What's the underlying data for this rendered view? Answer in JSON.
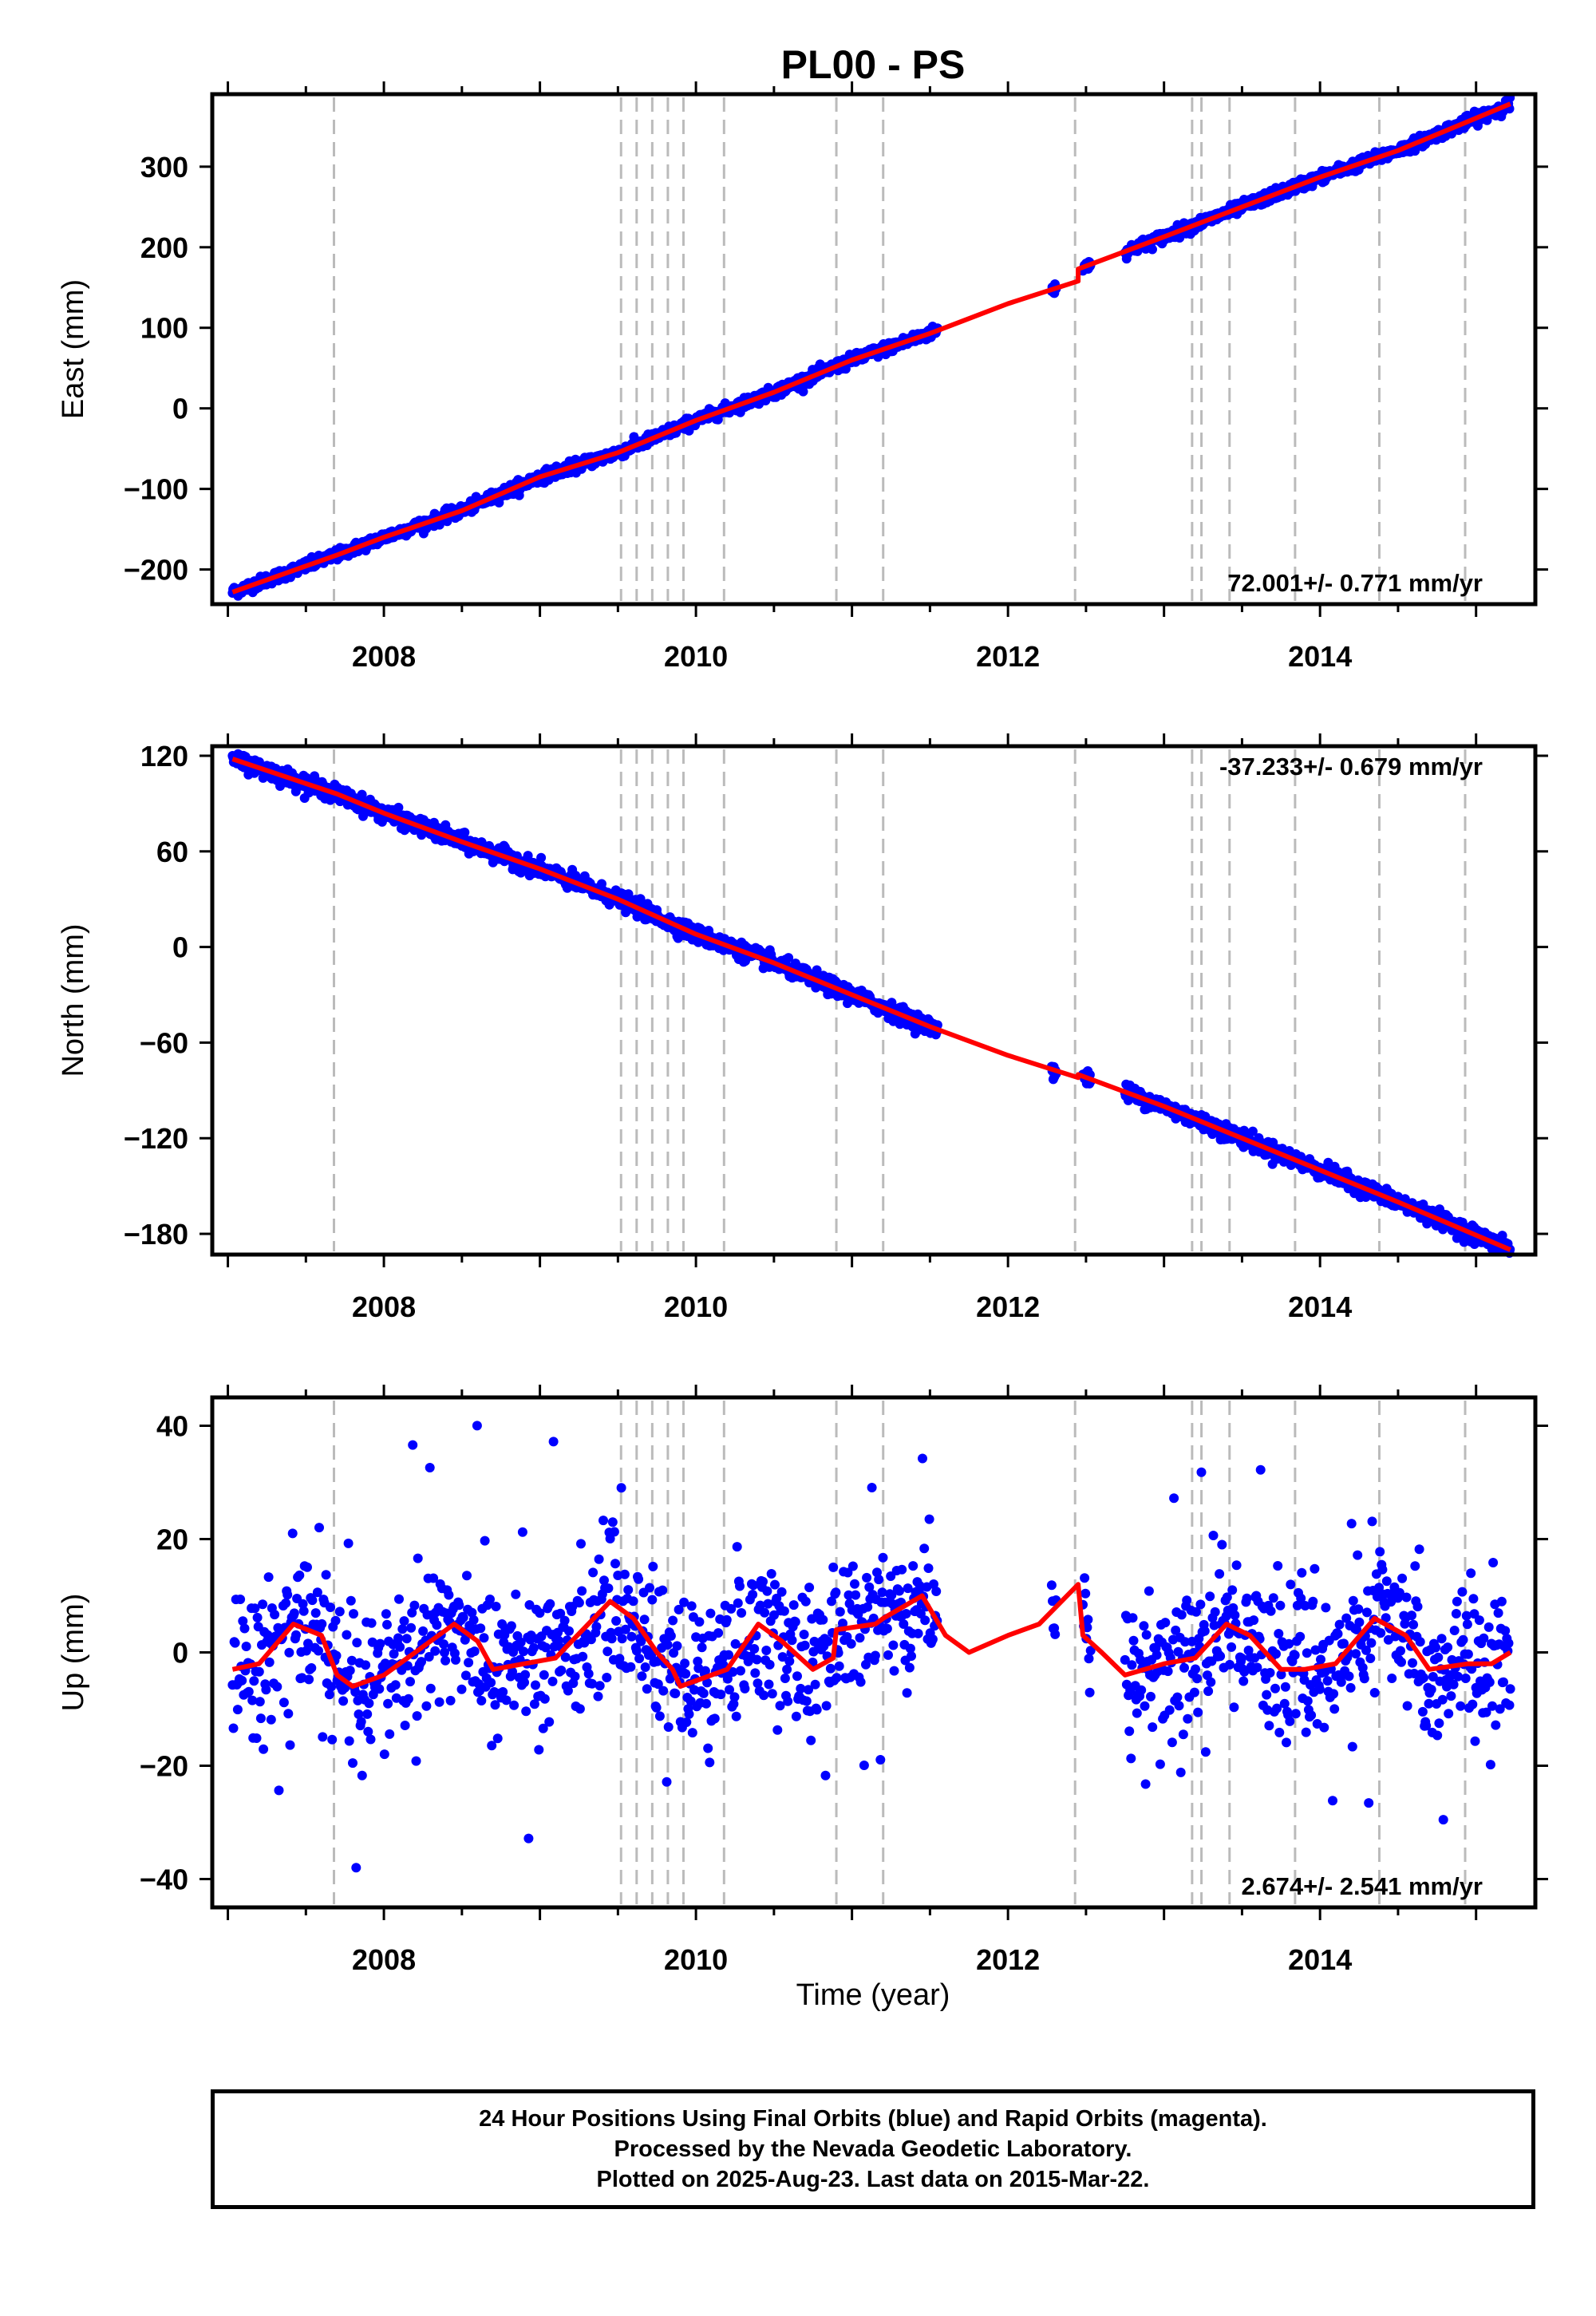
{
  "title": "PL00 - PS",
  "time_axis_label": "Time (year)",
  "footer": {
    "line1": "24 Hour Positions Using Final Orbits (blue) and Rapid Orbits (magenta).",
    "line2": "Processed by the Nevada Geodetic Laboratory.",
    "line3": "Plotted on 2025-Aug-23. Last data on 2015-Mar-22."
  },
  "colors": {
    "points": "#0000ff",
    "fit": "#ff0000",
    "event_lines": "#bbbbbb",
    "axes": "#000000"
  },
  "chart_data": [
    {
      "type": "scatter",
      "component": "East",
      "ylabel": "East (mm)",
      "rate_label": "72.001+/- 0.771 mm/yr",
      "rate_position": "bottom-right",
      "xlim": [
        2006.9,
        2015.38
      ],
      "ylim": [
        -243,
        390
      ],
      "yticks": [
        -200,
        -100,
        0,
        100,
        200,
        300
      ],
      "xticks": [
        2008,
        2010,
        2012,
        2014
      ],
      "data_segments": [
        [
          2007.03,
          2011.55
        ],
        [
          2012.28,
          2012.31
        ],
        [
          2012.48,
          2012.53
        ],
        [
          2012.75,
          2015.22
        ]
      ],
      "fit": {
        "points": [
          [
            2007.03,
            -228
          ],
          [
            2007.7,
            -182
          ],
          [
            2008.0,
            -160
          ],
          [
            2008.5,
            -127
          ],
          [
            2009.0,
            -85
          ],
          [
            2009.5,
            -55
          ],
          [
            2010.0,
            -15
          ],
          [
            2010.5,
            20
          ],
          [
            2011.0,
            60
          ],
          [
            2011.5,
            93
          ],
          [
            2012.0,
            130
          ],
          [
            2012.45,
            158
          ],
          [
            2012.45,
            173
          ],
          [
            2013.0,
            213
          ],
          [
            2013.5,
            250
          ],
          [
            2014.0,
            287
          ],
          [
            2014.5,
            320
          ],
          [
            2015.22,
            378
          ]
        ]
      }
    },
    {
      "type": "scatter",
      "component": "North",
      "ylabel": "North (mm)",
      "rate_label": "-37.233+/- 0.679 mm/yr",
      "rate_position": "top-right",
      "xlim": [
        2006.9,
        2015.38
      ],
      "ylim": [
        -193,
        126
      ],
      "yticks": [
        -180,
        -120,
        -60,
        0,
        60,
        120
      ],
      "xticks": [
        2008,
        2010,
        2012,
        2014
      ],
      "data_segments": [
        [
          2007.03,
          2011.55
        ],
        [
          2012.28,
          2012.31
        ],
        [
          2012.48,
          2012.53
        ],
        [
          2012.75,
          2015.22
        ]
      ],
      "fit": {
        "points": [
          [
            2007.03,
            118
          ],
          [
            2007.7,
            96
          ],
          [
            2008.0,
            84
          ],
          [
            2008.5,
            66
          ],
          [
            2009.0,
            49
          ],
          [
            2009.5,
            30
          ],
          [
            2010.0,
            8
          ],
          [
            2010.5,
            -10
          ],
          [
            2011.0,
            -30
          ],
          [
            2011.5,
            -50
          ],
          [
            2012.0,
            -68
          ],
          [
            2012.45,
            -82
          ],
          [
            2012.45,
            -80
          ],
          [
            2013.0,
            -100
          ],
          [
            2013.5,
            -120
          ],
          [
            2014.0,
            -140
          ],
          [
            2014.5,
            -160
          ],
          [
            2015.22,
            -190
          ]
        ]
      }
    },
    {
      "type": "scatter",
      "component": "Up",
      "ylabel": "Up (mm)",
      "rate_label": "2.674+/- 2.541 mm/yr",
      "rate_position": "bottom-right",
      "xlim": [
        2006.9,
        2015.38
      ],
      "ylim": [
        -45,
        45
      ],
      "yticks": [
        -40,
        -20,
        0,
        20,
        40
      ],
      "xticks": [
        2008,
        2010,
        2012,
        2014
      ],
      "data_segments": [
        [
          2007.03,
          2011.55
        ],
        [
          2012.28,
          2012.31
        ],
        [
          2012.48,
          2012.53
        ],
        [
          2012.75,
          2015.22
        ]
      ],
      "fit": {
        "points": [
          [
            2007.03,
            -3
          ],
          [
            2007.2,
            -2
          ],
          [
            2007.42,
            5
          ],
          [
            2007.6,
            3
          ],
          [
            2007.7,
            -4
          ],
          [
            2007.8,
            -6
          ],
          [
            2008.0,
            -4
          ],
          [
            2008.2,
            0
          ],
          [
            2008.45,
            5
          ],
          [
            2008.6,
            2
          ],
          [
            2008.7,
            -3
          ],
          [
            2008.9,
            -2
          ],
          [
            2009.1,
            -1
          ],
          [
            2009.45,
            9
          ],
          [
            2009.6,
            6
          ],
          [
            2009.75,
            0
          ],
          [
            2009.85,
            -3
          ],
          [
            2009.9,
            -6
          ],
          [
            2010.0,
            -5
          ],
          [
            2010.2,
            -3
          ],
          [
            2010.4,
            5
          ],
          [
            2010.55,
            2
          ],
          [
            2010.75,
            -3
          ],
          [
            2010.88,
            -1
          ],
          [
            2010.9,
            4
          ],
          [
            2011.15,
            5
          ],
          [
            2011.2,
            6
          ],
          [
            2011.45,
            10
          ],
          [
            2011.6,
            3
          ],
          [
            2011.75,
            0
          ],
          [
            2012.0,
            3
          ],
          [
            2012.2,
            5
          ],
          [
            2012.45,
            12
          ],
          [
            2012.48,
            3
          ],
          [
            2012.6,
            0
          ],
          [
            2012.75,
            -4
          ],
          [
            2013.0,
            -2
          ],
          [
            2013.2,
            -1
          ],
          [
            2013.4,
            5
          ],
          [
            2013.55,
            3
          ],
          [
            2013.75,
            -3
          ],
          [
            2013.9,
            -3
          ],
          [
            2014.1,
            -2
          ],
          [
            2014.35,
            6
          ],
          [
            2014.55,
            3
          ],
          [
            2014.7,
            -3
          ],
          [
            2014.95,
            -2
          ],
          [
            2015.1,
            -2
          ],
          [
            2015.22,
            0
          ]
        ]
      }
    }
  ],
  "event_lines": [
    2007.68,
    2009.52,
    2009.62,
    2009.72,
    2009.82,
    2009.92,
    2010.18,
    2010.9,
    2011.2,
    2012.43,
    2013.18,
    2013.24,
    2013.42,
    2013.84,
    2014.38,
    2014.93
  ]
}
